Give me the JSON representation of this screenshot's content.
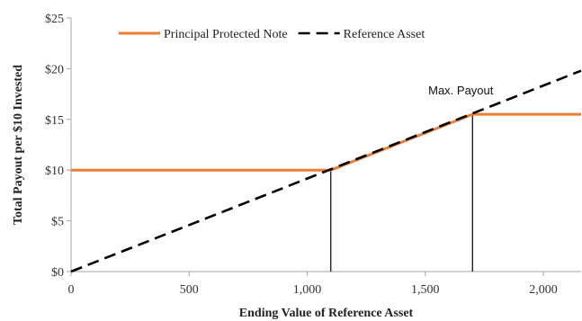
{
  "chart_data": {
    "type": "line",
    "title": "",
    "xlabel": "Ending Value of Reference Asset",
    "ylabel": "Total Payout per $10 Invested",
    "xlim": [
      0,
      2160
    ],
    "ylim": [
      0,
      25
    ],
    "x_ticks": [
      {
        "value": 0,
        "label": "0"
      },
      {
        "value": 500,
        "label": "500"
      },
      {
        "value": 1000,
        "label": "1,000"
      },
      {
        "value": 1500,
        "label": "1,500"
      },
      {
        "value": 2000,
        "label": "2,000"
      }
    ],
    "y_ticks": [
      {
        "value": 0,
        "label": "$0"
      },
      {
        "value": 5,
        "label": "$5"
      },
      {
        "value": 10,
        "label": "$10"
      },
      {
        "value": 15,
        "label": "$15"
      },
      {
        "value": 20,
        "label": "$20"
      },
      {
        "value": 25,
        "label": "$25"
      }
    ],
    "grid": false,
    "legend_position": "top",
    "series": [
      {
        "name": "Principal Protected Note",
        "color": "#ED7D31",
        "style": "solid",
        "points": [
          [
            0,
            10
          ],
          [
            1100,
            10
          ],
          [
            1700,
            15.5
          ],
          [
            2160,
            15.5
          ]
        ]
      },
      {
        "name": "Reference Asset",
        "color": "#000000",
        "style": "dashed",
        "points": [
          [
            0,
            0
          ],
          [
            2160,
            19.8
          ]
        ]
      }
    ],
    "reference_lines": [
      {
        "x": 1100,
        "y_top": 10,
        "color": "#000000"
      },
      {
        "x": 1700,
        "y_top": 15.5,
        "color": "#000000"
      }
    ],
    "annotations": [
      {
        "text": "Max. Payout",
        "x": 1700,
        "y": 15.5
      }
    ]
  }
}
